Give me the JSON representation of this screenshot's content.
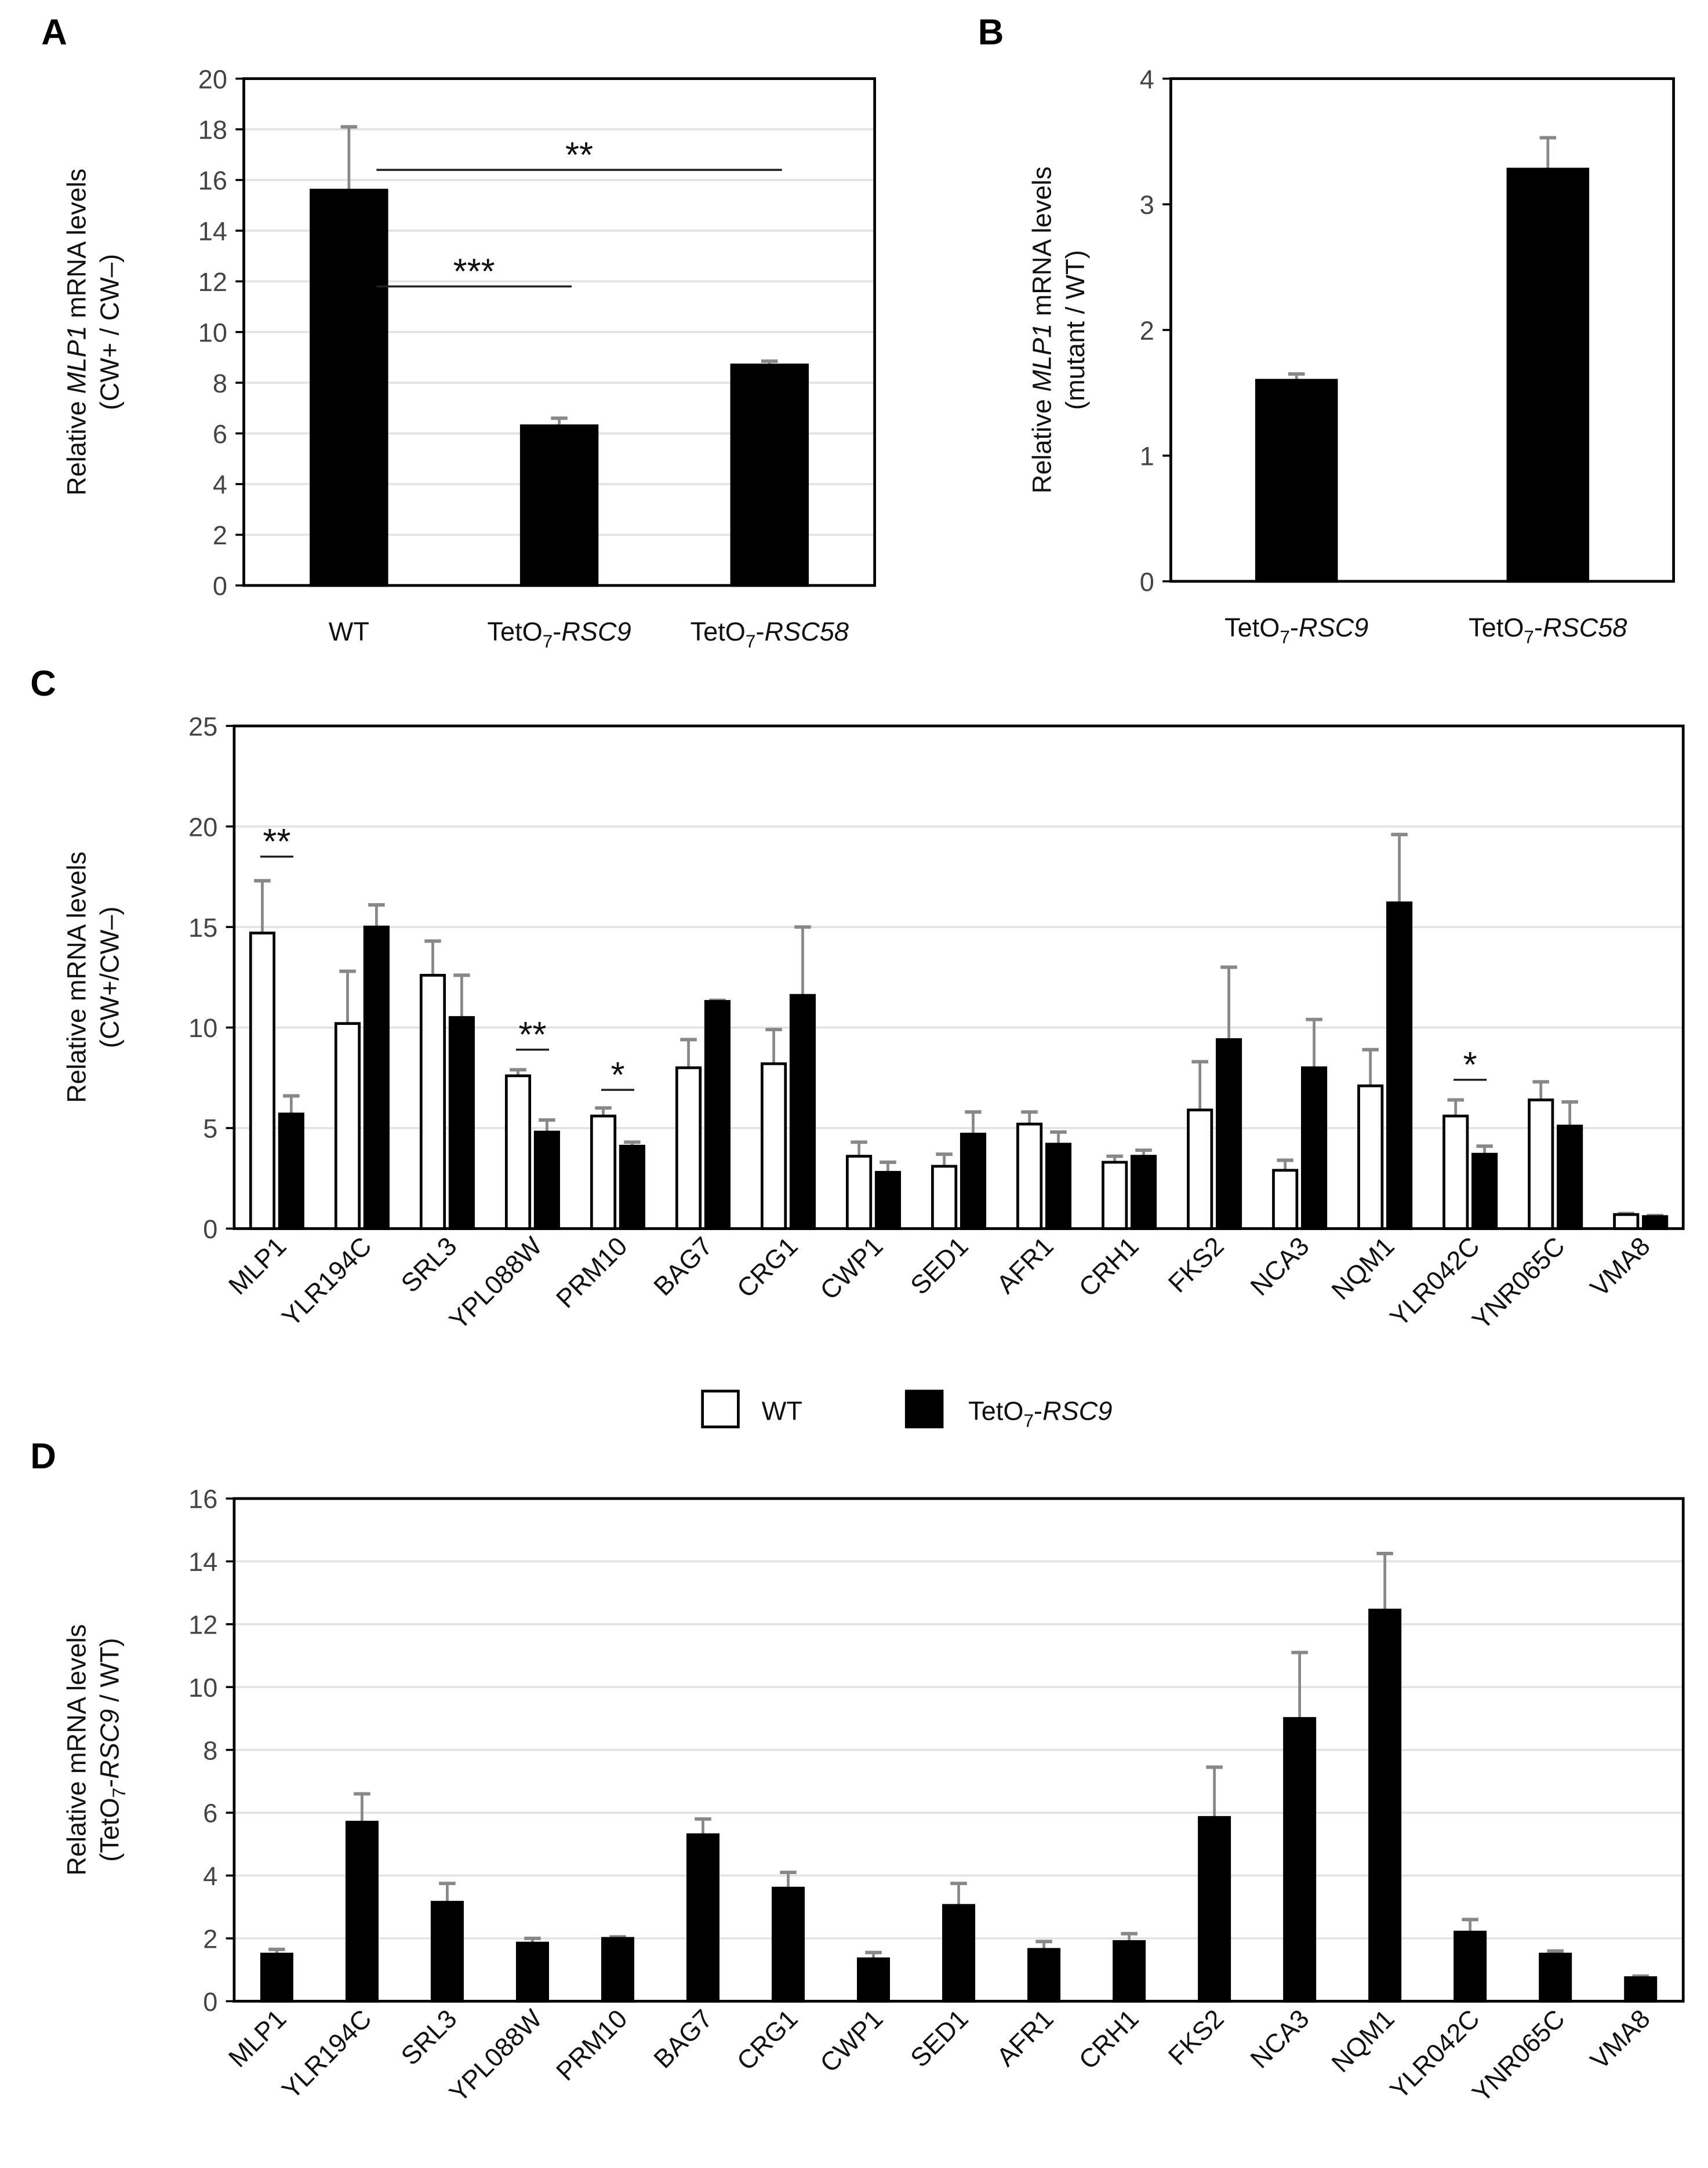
{
  "colors": {
    "black_bar": "#000000",
    "white_bar": "#ffffff",
    "error_bar": "#888888",
    "grid": "#e2e2e2"
  },
  "legend": {
    "wt": "WT",
    "rsc9": [
      {
        "t": "TetO"
      },
      {
        "t": "7",
        "sub": true
      },
      {
        "t": "-"
      },
      {
        "t": "RSC9",
        "i": true
      }
    ]
  },
  "chart_data": [
    {
      "panel": "A",
      "type": "bar",
      "ylabel": [
        [
          {
            "t": "Relative "
          },
          {
            "t": "MLP1",
            "i": true
          },
          {
            "t": " mRNA levels"
          }
        ],
        [
          {
            "t": "(CW+ / CW–)"
          }
        ]
      ],
      "ylim": [
        0,
        20
      ],
      "ystep": 2,
      "grid": true,
      "categories": [
        [
          {
            "t": "WT"
          }
        ],
        [
          {
            "t": "TetO"
          },
          {
            "t": "7",
            "sub": true
          },
          {
            "t": "-"
          },
          {
            "t": "RSC9",
            "i": true
          }
        ],
        [
          {
            "t": "TetO"
          },
          {
            "t": "7",
            "sub": true
          },
          {
            "t": "-"
          },
          {
            "t": "RSC58",
            "i": true
          }
        ]
      ],
      "series": [
        {
          "name": "value",
          "values": [
            15.6,
            6.3,
            8.7
          ],
          "errors": [
            2.5,
            0.3,
            0.15
          ]
        }
      ],
      "significance": [
        {
          "from": 0,
          "to": 2,
          "label": "**",
          "y": 16.4
        },
        {
          "from": 0,
          "to": 1,
          "label": "***",
          "y": 11.8
        }
      ]
    },
    {
      "panel": "B",
      "type": "bar",
      "ylabel": [
        [
          {
            "t": "Relative "
          },
          {
            "t": "MLP1",
            "i": true
          },
          {
            "t": " mRNA levels"
          }
        ],
        [
          {
            "t": "(mutant / WT)"
          }
        ]
      ],
      "ylim": [
        0,
        4
      ],
      "ystep": 1,
      "grid": false,
      "categories": [
        [
          {
            "t": "TetO"
          },
          {
            "t": "7",
            "sub": true
          },
          {
            "t": "-"
          },
          {
            "t": "RSC9",
            "i": true
          }
        ],
        [
          {
            "t": "TetO"
          },
          {
            "t": "7",
            "sub": true
          },
          {
            "t": "-"
          },
          {
            "t": "RSC58",
            "i": true
          }
        ]
      ],
      "series": [
        {
          "name": "value",
          "values": [
            1.6,
            3.28
          ],
          "errors": [
            0.05,
            0.25
          ]
        }
      ],
      "significance": []
    },
    {
      "panel": "C",
      "type": "bar",
      "ylabel": [
        [
          {
            "t": "Relative mRNA levels"
          }
        ],
        [
          {
            "t": "(CW+/CW–)"
          }
        ]
      ],
      "ylim": [
        0,
        25
      ],
      "ystep": 5,
      "grid": true,
      "categories": [
        "MLP1",
        "YLR194C",
        "SRL3",
        "YPL088W",
        "PRM10",
        "BAG7",
        "CRG1",
        "CWP1",
        "SED1",
        "AFR1",
        "CRH1",
        "FKS2",
        "NCA3",
        "NQM1",
        "YLR042C",
        "YNR065C",
        "VMA8"
      ],
      "series": [
        {
          "name": "WT",
          "values": [
            14.7,
            10.2,
            12.6,
            7.6,
            5.6,
            8.0,
            8.2,
            3.6,
            3.1,
            5.2,
            3.3,
            5.9,
            2.9,
            7.1,
            5.6,
            6.4,
            0.7
          ],
          "errors": [
            2.6,
            2.6,
            1.7,
            0.3,
            0.4,
            1.4,
            1.7,
            0.7,
            0.6,
            0.6,
            0.3,
            2.4,
            0.5,
            1.8,
            0.8,
            0.9,
            0.05
          ]
        },
        {
          "name": "TetO7-RSC9",
          "values": [
            5.7,
            15.0,
            10.5,
            4.8,
            4.1,
            11.3,
            11.6,
            2.8,
            4.7,
            4.2,
            3.6,
            9.4,
            8.0,
            16.2,
            3.7,
            5.1,
            0.6
          ],
          "errors": [
            0.9,
            1.1,
            2.1,
            0.6,
            0.2,
            0.05,
            3.4,
            0.5,
            1.1,
            0.6,
            0.3,
            3.6,
            2.4,
            3.4,
            0.4,
            1.2,
            0.05
          ]
        }
      ],
      "significance": [
        {
          "group": 0,
          "label": "**",
          "y": 18.5
        },
        {
          "group": 3,
          "label": "**",
          "y": 8.9
        },
        {
          "group": 4,
          "label": "*",
          "y": 6.9
        },
        {
          "group": 14,
          "label": "*",
          "y": 7.4
        }
      ]
    },
    {
      "panel": "D",
      "type": "bar",
      "ylabel": [
        [
          {
            "t": "Relative mRNA levels"
          }
        ],
        [
          {
            "t": "(TetO"
          },
          {
            "t": "7",
            "sub": true
          },
          {
            "t": "-"
          },
          {
            "t": "RSC9",
            "i": true
          },
          {
            "t": " / WT)"
          }
        ]
      ],
      "ylim": [
        0,
        16
      ],
      "ystep": 2,
      "grid": true,
      "categories": [
        "MLP1",
        "YLR194C",
        "SRL3",
        "YPL088W",
        "PRM10",
        "BAG7",
        "CRG1",
        "CWP1",
        "SED1",
        "AFR1",
        "CRH1",
        "FKS2",
        "NCA3",
        "NQM1",
        "YLR042C",
        "YNR065C",
        "VMA8"
      ],
      "series": [
        {
          "name": "TetO7-RSC9 / WT",
          "values": [
            1.5,
            5.7,
            3.15,
            1.85,
            2.0,
            5.3,
            3.6,
            1.35,
            3.05,
            1.65,
            1.9,
            5.85,
            9.0,
            12.45,
            2.2,
            1.5,
            0.75
          ],
          "errors": [
            0.15,
            0.9,
            0.6,
            0.15,
            0.05,
            0.5,
            0.5,
            0.2,
            0.7,
            0.25,
            0.25,
            1.6,
            2.1,
            1.8,
            0.4,
            0.1,
            0.05
          ]
        }
      ],
      "significance": []
    }
  ]
}
